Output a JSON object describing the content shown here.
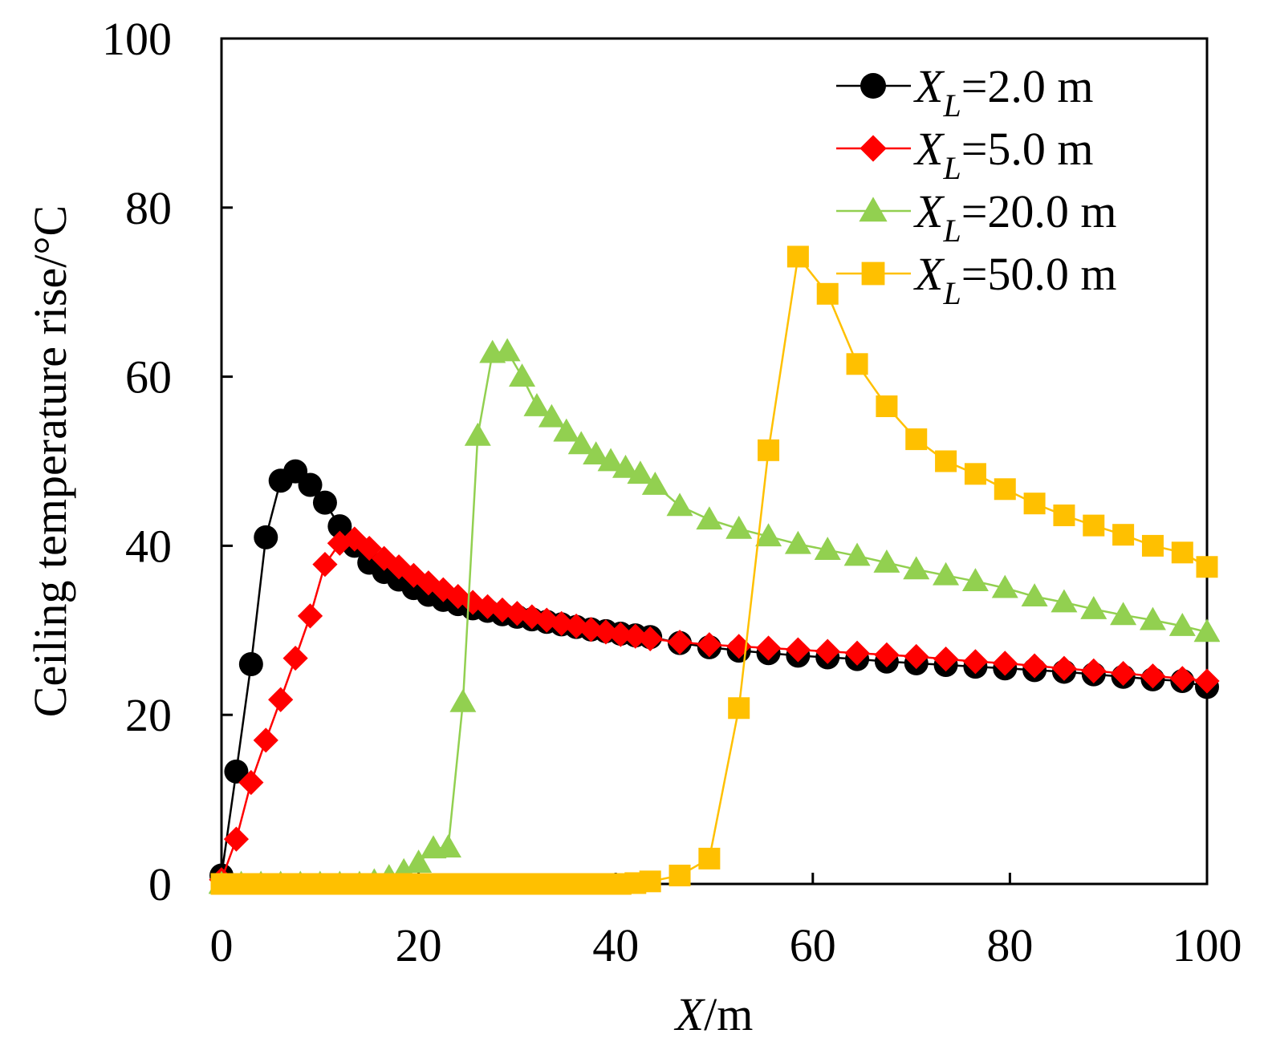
{
  "chart_data": {
    "type": "line",
    "title": "",
    "xlabel_italic": "X",
    "xlabel_rest": "/m",
    "ylabel": "Ceiling temperature rise/°C",
    "xlim": [
      0,
      100
    ],
    "ylim": [
      0,
      100
    ],
    "xticks": [
      0,
      20,
      40,
      60,
      80,
      100
    ],
    "yticks": [
      0,
      20,
      40,
      60,
      80,
      100
    ],
    "xtick_labels": [
      "0",
      "20",
      "40",
      "60",
      "80",
      "100"
    ],
    "ytick_labels": [
      "0",
      "20",
      "40",
      "60",
      "80",
      "100"
    ],
    "grid": false,
    "legend_position": "top-right",
    "series": [
      {
        "name": "XL=2.0 m",
        "label_italic": "X",
        "label_sub": "L",
        "label_rest": "=2.0 m",
        "color": "#000000",
        "marker": "circle",
        "x": [
          0,
          1.5,
          3,
          4.5,
          6,
          7.5,
          9,
          10.5,
          12,
          13.5,
          15,
          16.5,
          18,
          19.5,
          21,
          22.5,
          24,
          25.5,
          27,
          28.5,
          30,
          31.5,
          33,
          34.5,
          36,
          37.5,
          39,
          40.5,
          42,
          43.5,
          46.5,
          49.5,
          52.5,
          55.5,
          58.5,
          61.5,
          64.5,
          67.5,
          70.5,
          73.5,
          76.5,
          79.5,
          82.5,
          85.5,
          88.5,
          91.5,
          94.5,
          97.5,
          100
        ],
        "y": [
          1,
          13.3,
          26,
          41,
          47.7,
          48.8,
          47.2,
          45.1,
          42.3,
          40,
          38,
          36.9,
          36,
          35,
          34.2,
          33.6,
          33.1,
          32.6,
          32.3,
          31.9,
          31.6,
          31.3,
          31,
          30.7,
          30.4,
          30.1,
          29.9,
          29.6,
          29.4,
          29.2,
          28.5,
          28,
          27.6,
          27.3,
          27,
          26.8,
          26.6,
          26.3,
          26.1,
          25.9,
          25.7,
          25.5,
          25.3,
          25.1,
          24.8,
          24.5,
          24.2,
          24,
          23.3
        ]
      },
      {
        "name": "XL=5.0 m",
        "label_italic": "X",
        "label_sub": "L",
        "label_rest": "=5.0 m",
        "color": "#ff0000",
        "marker": "diamond",
        "x": [
          0,
          1.5,
          3,
          4.5,
          6,
          7.5,
          9,
          10.5,
          12,
          13.5,
          15,
          16.5,
          18,
          19.5,
          21,
          22.5,
          24,
          25.5,
          27,
          28.5,
          30,
          31.5,
          33,
          34.5,
          36,
          37.5,
          39,
          40.5,
          42,
          43.5,
          46.5,
          49.5,
          52.5,
          55.5,
          58.5,
          61.5,
          64.5,
          67.5,
          70.5,
          73.5,
          76.5,
          79.5,
          82.5,
          85.5,
          88.5,
          91.5,
          94.5,
          97.5,
          100
        ],
        "y": [
          0.5,
          5.3,
          12,
          17,
          21.8,
          26.7,
          31.7,
          37.8,
          40.3,
          40.8,
          39.7,
          38.5,
          37.5,
          36.5,
          35.6,
          34.8,
          34,
          33.3,
          32.8,
          32.4,
          32,
          31.6,
          31.2,
          30.8,
          30.5,
          30.1,
          29.8,
          29.5,
          29.3,
          29,
          28.6,
          28.3,
          28.1,
          27.9,
          27.7,
          27.5,
          27.3,
          27.1,
          26.9,
          26.6,
          26.3,
          26.1,
          25.8,
          25.5,
          25.2,
          24.9,
          24.6,
          24.3,
          24
        ]
      },
      {
        "name": "XL=20.0 m",
        "label_italic": "X",
        "label_sub": "L",
        "label_rest": "=20.0 m",
        "color": "#92d050",
        "marker": "triangle",
        "x": [
          0,
          2,
          4,
          6,
          8,
          10,
          12,
          14,
          15.5,
          17,
          18.5,
          20,
          21.5,
          23,
          24.5,
          26,
          27.5,
          29,
          30.5,
          32,
          33.5,
          35,
          36.5,
          38,
          39.5,
          41,
          42.5,
          44,
          46.5,
          49.5,
          52.5,
          55.5,
          58.5,
          61.5,
          64.5,
          67.5,
          70.5,
          73.5,
          76.5,
          79.5,
          82.5,
          85.5,
          88.5,
          91.5,
          94.5,
          97.5,
          100
        ],
        "y": [
          0,
          0,
          0,
          0,
          0,
          0,
          0,
          0,
          0.3,
          0.8,
          1.5,
          2.5,
          4.2,
          4.3,
          21.5,
          53,
          62.8,
          63,
          60,
          56.5,
          55.2,
          53.5,
          52,
          50.8,
          50,
          49.2,
          48.5,
          47.2,
          44.7,
          43.1,
          42,
          41.1,
          40.2,
          39.5,
          38.8,
          38,
          37.2,
          36.5,
          35.8,
          35,
          34,
          33.3,
          32.5,
          31.8,
          31.2,
          30.5,
          29.8
        ]
      },
      {
        "name": "XL=50.0 m",
        "label_italic": "X",
        "label_sub": "L",
        "label_rest": "=50.0 m",
        "color": "#ffc000",
        "marker": "square",
        "x": [
          0,
          1.5,
          3,
          4.5,
          6,
          7.5,
          9,
          10.5,
          12,
          13.5,
          15,
          16.5,
          18,
          19.5,
          21,
          22.5,
          24,
          25.5,
          27,
          28.5,
          30,
          31.5,
          33,
          34.5,
          36,
          37.5,
          39,
          40.5,
          42,
          43.5,
          46.5,
          49.5,
          52.5,
          55.5,
          58.5,
          61.5,
          64.5,
          67.5,
          70.5,
          73.5,
          76.5,
          79.5,
          82.5,
          85.5,
          88.5,
          91.5,
          94.5,
          97.5,
          100
        ],
        "y": [
          0,
          0,
          0,
          0,
          0,
          0,
          0,
          0,
          0,
          0,
          0,
          0,
          0,
          0,
          0,
          0,
          0,
          0,
          0,
          0,
          0,
          0,
          0,
          0,
          0,
          0,
          0,
          0,
          0.1,
          0.3,
          1,
          3,
          20.8,
          51.3,
          74.2,
          69.8,
          61.5,
          56.5,
          52.6,
          50,
          48.5,
          46.7,
          45,
          43.6,
          42.4,
          41.3,
          40,
          39.2,
          37.5
        ]
      }
    ]
  }
}
